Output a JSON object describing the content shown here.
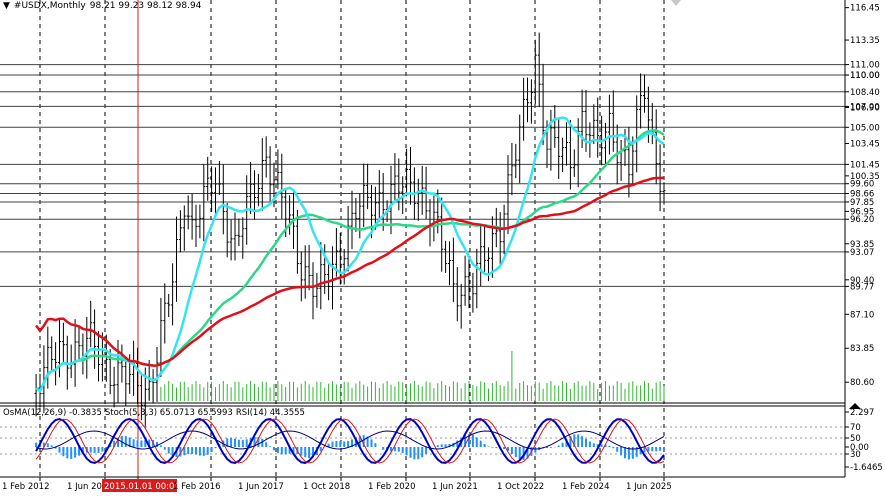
{
  "header": {
    "symbol": "#USDX,Monthly",
    "ohlc": "98.21 99.23 98.12 98.94"
  },
  "subwindow_header": {
    "osma": "OsMA(12,26,9) -0.3835",
    "stoch": "Stoch(5,3,3) 65.0713 65.5993",
    "rsi": "RSI(14) 44.3555"
  },
  "price_axis": [
    "116.45",
    "113.35",
    "110.00",
    "106.90",
    "103.45",
    "100.35",
    "96.95",
    "93.85",
    "90.40",
    "87.10",
    "83.85",
    "80.60"
  ],
  "price_levels": [
    {
      "label": "111.00",
      "value": 111.0
    },
    {
      "label": "110.00",
      "value": 110.0
    },
    {
      "label": "108.40",
      "value": 108.4
    },
    {
      "label": "107.00",
      "value": 107.0
    },
    {
      "label": "105.00",
      "value": 105.0
    },
    {
      "label": "101.45",
      "value": 101.45
    },
    {
      "label": "99.60",
      "value": 99.6
    },
    {
      "label": "98.66",
      "value": 98.66
    },
    {
      "label": "97.85",
      "value": 97.85
    },
    {
      "label": "96.20",
      "value": 96.2
    },
    {
      "label": "93.07",
      "value": 93.07
    },
    {
      "label": "89.77",
      "value": 89.77
    }
  ],
  "sub_axis": [
    "2.297",
    "70",
    "50",
    "30",
    "0.00",
    "-1.6465"
  ],
  "time_axis": [
    "1 Feb 2012",
    "1 Jun 20",
    "2015.01.01 00:00",
    "1 Feb 2016",
    "1 Jun 2017",
    "1 Oct 2018",
    "1 Feb 2020",
    "1 Jun 2021",
    "1 Oct 2022",
    "1 Feb 2024",
    "1 Jun 2025"
  ],
  "colors": {
    "candle": "#000000",
    "ma_cyan": "#33E5F0",
    "ma_green": "#2ED889",
    "ma_red": "#E0101A",
    "volume": "#2EB82E",
    "histogram": "#1E90FF",
    "stoch_main": "#0000C0",
    "rsi": "#000080",
    "stoch_signal": "#D81B1B",
    "crosshair": "#D81B1B",
    "highlight_bg": "#D81B1B"
  },
  "chart_data": {
    "type": "candlestick",
    "symbol": "#USDX",
    "timeframe": "Monthly",
    "last_bar": {
      "open": 98.21,
      "high": 99.23,
      "low": 98.12,
      "close": 98.94
    },
    "y_range": [
      78.8,
      116.8
    ],
    "horizontal_levels": [
      111.0,
      110.0,
      108.4,
      107.0,
      105.0,
      101.45,
      99.6,
      98.66,
      97.85,
      96.2,
      93.07,
      89.77
    ],
    "x_range": [
      "2012-02",
      "2025-06"
    ],
    "anchors": [
      [
        "2012-01",
        80.5
      ],
      [
        "2012-07",
        83.5
      ],
      [
        "2013-03",
        84.2
      ],
      [
        "2013-08",
        82.0
      ],
      [
        "2014-04",
        80.0
      ],
      [
        "2014-06",
        80.3
      ],
      [
        "2014-12",
        90.0
      ],
      [
        "2015-03",
        98.5
      ],
      [
        "2015-05",
        95.5
      ],
      [
        "2015-11",
        100.0
      ],
      [
        "2016-04",
        93.5
      ],
      [
        "2016-12",
        102.5
      ],
      [
        "2017-06",
        95.5
      ],
      [
        "2017-09",
        92.0
      ],
      [
        "2018-01",
        89.5
      ],
      [
        "2018-04",
        90.5
      ],
      [
        "2018-11",
        97.0
      ],
      [
        "2019-09",
        99.0
      ],
      [
        "2020-03",
        99.5
      ],
      [
        "2020-06",
        97.0
      ],
      [
        "2020-12",
        89.9
      ],
      [
        "2021-05",
        89.9
      ],
      [
        "2021-12",
        96.0
      ],
      [
        "2022-05",
        104.0
      ],
      [
        "2022-09",
        111.8
      ],
      [
        "2022-12",
        103.5
      ],
      [
        "2023-06",
        102.0
      ],
      [
        "2023-09",
        106.0
      ],
      [
        "2024-01",
        103.0
      ],
      [
        "2024-04",
        105.5
      ],
      [
        "2024-09",
        100.8
      ],
      [
        "2025-01",
        109.0
      ],
      [
        "2025-03",
        104.0
      ],
      [
        "2025-06",
        98.9
      ]
    ],
    "indicators": [
      "OsMA(12,26,9)",
      "Stoch(5,3,3)",
      "RSI(14)"
    ]
  }
}
